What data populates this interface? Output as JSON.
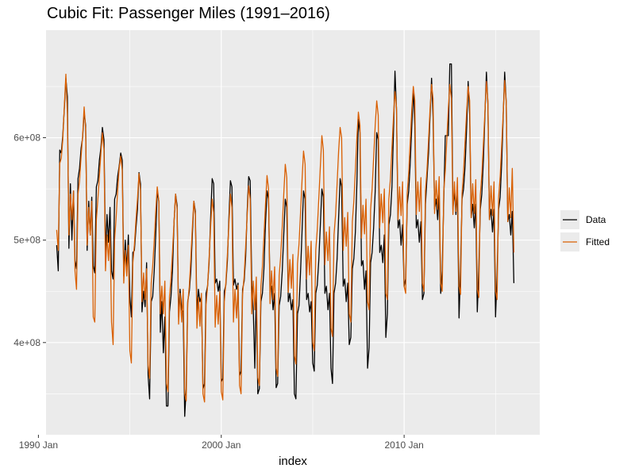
{
  "title": "Cubic Fit: Passenger Miles (1991–2016)",
  "chart_data": {
    "type": "line",
    "title": "Cubic Fit: Passenger Miles (1991–2016)",
    "xlabel": "index",
    "ylabel": "",
    "x_range": [
      "1990-06",
      "2017-06"
    ],
    "ylim": [
      310000000,
      705000000
    ],
    "x_ticks": [
      {
        "label": "1990 Jan",
        "value": "1990-01"
      },
      {
        "label": "2000 Jan",
        "value": "2000-01"
      },
      {
        "label": "2010 Jan",
        "value": "2010-01"
      }
    ],
    "y_ticks": [
      {
        "label": "4e+08",
        "value": 400000000
      },
      {
        "label": "5e+08",
        "value": 500000000
      },
      {
        "label": "6e+08",
        "value": 600000000
      }
    ],
    "grid": true,
    "legend_position": "right",
    "x_start": "1991-01",
    "x_interval": "month",
    "series": [
      {
        "name": "Data",
        "color": "#000000",
        "values": [
          495000000,
          470000000,
          588000000,
          585000000,
          602000000,
          628000000,
          658000000,
          640000000,
          492000000,
          555000000,
          500000000,
          548000000,
          480000000,
          472000000,
          560000000,
          570000000,
          590000000,
          600000000,
          625000000,
          612000000,
          490000000,
          538000000,
          505000000,
          542000000,
          475000000,
          468000000,
          552000000,
          558000000,
          578000000,
          590000000,
          610000000,
          598000000,
          488000000,
          525000000,
          498000000,
          532000000,
          470000000,
          462000000,
          540000000,
          545000000,
          562000000,
          572000000,
          585000000,
          578000000,
          465000000,
          500000000,
          472000000,
          505000000,
          445000000,
          425000000,
          488000000,
          490000000,
          512000000,
          530000000,
          566000000,
          555000000,
          430000000,
          450000000,
          435000000,
          478000000,
          368000000,
          345000000,
          440000000,
          445000000,
          470000000,
          505000000,
          548000000,
          538000000,
          410000000,
          440000000,
          390000000,
          425000000,
          338000000,
          338000000,
          430000000,
          445000000,
          470000000,
          518000000,
          545000000,
          534000000,
          425000000,
          452000000,
          432000000,
          430000000,
          328000000,
          355000000,
          440000000,
          450000000,
          470000000,
          505000000,
          538000000,
          528000000,
          428000000,
          452000000,
          440000000,
          445000000,
          355000000,
          360000000,
          448000000,
          455000000,
          478000000,
          520000000,
          560000000,
          555000000,
          458000000,
          462000000,
          450000000,
          460000000,
          362000000,
          365000000,
          450000000,
          456000000,
          480000000,
          522000000,
          558000000,
          552000000,
          456000000,
          462000000,
          452000000,
          458000000,
          368000000,
          372000000,
          452000000,
          460000000,
          484000000,
          528000000,
          562000000,
          558000000,
          456000000,
          432000000,
          375000000,
          448000000,
          350000000,
          355000000,
          440000000,
          448000000,
          472000000,
          515000000,
          548000000,
          540000000,
          450000000,
          455000000,
          432000000,
          448000000,
          356000000,
          360000000,
          436000000,
          445000000,
          470000000,
          506000000,
          540000000,
          532000000,
          440000000,
          448000000,
          432000000,
          442000000,
          350000000,
          345000000,
          428000000,
          436000000,
          468000000,
          508000000,
          548000000,
          540000000,
          442000000,
          448000000,
          430000000,
          440000000,
          380000000,
          372000000,
          448000000,
          456000000,
          480000000,
          515000000,
          550000000,
          542000000,
          448000000,
          455000000,
          432000000,
          448000000,
          375000000,
          360000000,
          448000000,
          458000000,
          482000000,
          522000000,
          560000000,
          552000000,
          455000000,
          462000000,
          440000000,
          458000000,
          398000000,
          405000000,
          472000000,
          482000000,
          508000000,
          555000000,
          618000000,
          605000000,
          475000000,
          480000000,
          452000000,
          470000000,
          375000000,
          395000000,
          478000000,
          488000000,
          512000000,
          548000000,
          605000000,
          598000000,
          488000000,
          495000000,
          478000000,
          505000000,
          405000000,
          428000000,
          515000000,
          525000000,
          552000000,
          605000000,
          665000000,
          628000000,
          512000000,
          520000000,
          495000000,
          515000000,
          455000000,
          462000000,
          535000000,
          548000000,
          575000000,
          610000000,
          648000000,
          612000000,
          512000000,
          520000000,
          498000000,
          518000000,
          442000000,
          448000000,
          535000000,
          560000000,
          585000000,
          622000000,
          658000000,
          620000000,
          530000000,
          540000000,
          520000000,
          545000000,
          448000000,
          470000000,
          540000000,
          602000000,
          602000000,
          602000000,
          672000000,
          672000000,
          530000000,
          548000000,
          525000000,
          548000000,
          424000000,
          470000000,
          540000000,
          550000000,
          572000000,
          610000000,
          655000000,
          622000000,
          522000000,
          535000000,
          512000000,
          535000000,
          430000000,
          470000000,
          530000000,
          545000000,
          578000000,
          622000000,
          664000000,
          632000000,
          520000000,
          530000000,
          508000000,
          530000000,
          425000000,
          465000000,
          530000000,
          542000000,
          575000000,
          620000000,
          664000000,
          634000000,
          518000000,
          525000000,
          505000000,
          528000000,
          458000000
        ]
      },
      {
        "name": "Fitted",
        "color": "#d95f02",
        "values": [
          510000000,
          490000000,
          575000000,
          580000000,
          598000000,
          630000000,
          662000000,
          622000000,
          505000000,
          545000000,
          520000000,
          548000000,
          470000000,
          452000000,
          545000000,
          558000000,
          582000000,
          602000000,
          630000000,
          608000000,
          495000000,
          532000000,
          505000000,
          538000000,
          425000000,
          420000000,
          520000000,
          540000000,
          562000000,
          585000000,
          605000000,
          588000000,
          470000000,
          505000000,
          480000000,
          510000000,
          420000000,
          398000000,
          500000000,
          522000000,
          548000000,
          570000000,
          582000000,
          568000000,
          458000000,
          490000000,
          465000000,
          495000000,
          392000000,
          380000000,
          478000000,
          495000000,
          520000000,
          540000000,
          565000000,
          548000000,
          440000000,
          468000000,
          442000000,
          472000000,
          378000000,
          365000000,
          458000000,
          475000000,
          500000000,
          528000000,
          552000000,
          538000000,
          428000000,
          455000000,
          428000000,
          460000000,
          360000000,
          352000000,
          445000000,
          462000000,
          488000000,
          518000000,
          545000000,
          530000000,
          418000000,
          448000000,
          420000000,
          452000000,
          350000000,
          343000000,
          438000000,
          455000000,
          482000000,
          512000000,
          538000000,
          525000000,
          414000000,
          444000000,
          416000000,
          448000000,
          350000000,
          342000000,
          437000000,
          455000000,
          482000000,
          512000000,
          540000000,
          527000000,
          415000000,
          446000000,
          418000000,
          450000000,
          352000000,
          344000000,
          440000000,
          458000000,
          486000000,
          516000000,
          545000000,
          532000000,
          420000000,
          452000000,
          424000000,
          456000000,
          358000000,
          350000000,
          447000000,
          465000000,
          494000000,
          524000000,
          553000000,
          540000000,
          428000000,
          460000000,
          432000000,
          464000000,
          366000000,
          358000000,
          455000000,
          474000000,
          503000000,
          534000000,
          563000000,
          550000000,
          438000000,
          470000000,
          442000000,
          474000000,
          375000000,
          367000000,
          465000000,
          484000000,
          513000000,
          545000000,
          574000000,
          561000000,
          449000000,
          481000000,
          453000000,
          486000000,
          387000000,
          379000000,
          477000000,
          496000000,
          526000000,
          558000000,
          587000000,
          574000000,
          462000000,
          494000000,
          466000000,
          499000000,
          400000000,
          392000000,
          490000000,
          510000000,
          540000000,
          572000000,
          602000000,
          588000000,
          476000000,
          508000000,
          480000000,
          513000000,
          414000000,
          406000000,
          505000000,
          525000000,
          555000000,
          587000000,
          610000000,
          600000000,
          490000000,
          522000000,
          494000000,
          527000000,
          428000000,
          420000000,
          518000000,
          538000000,
          568000000,
          600000000,
          625000000,
          612000000,
          502000000,
          534000000,
          506000000,
          540000000,
          440000000,
          432000000,
          530000000,
          550000000,
          580000000,
          612000000,
          636000000,
          622000000,
          512000000,
          545000000,
          517000000,
          550000000,
          448000000,
          442000000,
          540000000,
          560000000,
          590000000,
          620000000,
          645000000,
          630000000,
          520000000,
          552000000,
          524000000,
          557000000,
          455000000,
          448000000,
          546000000,
          566000000,
          596000000,
          626000000,
          650000000,
          636000000,
          525000000,
          557000000,
          528000000,
          561000000,
          458000000,
          450000000,
          548000000,
          568000000,
          598000000,
          628000000,
          652000000,
          638000000,
          526000000,
          558000000,
          530000000,
          562000000,
          458000000,
          450000000,
          548000000,
          568000000,
          598000000,
          628000000,
          652000000,
          638000000,
          525000000,
          557000000,
          528000000,
          561000000,
          455000000,
          447000000,
          546000000,
          566000000,
          596000000,
          626000000,
          650000000,
          636000000,
          522000000,
          555000000,
          526000000,
          559000000,
          452000000,
          444000000,
          544000000,
          564000000,
          594000000,
          625000000,
          655000000,
          636000000,
          520000000,
          553000000,
          524000000,
          557000000,
          450000000,
          442000000,
          542000000,
          562000000,
          592000000,
          623000000,
          656000000,
          634000000,
          518000000,
          551000000,
          522000000,
          570000000,
          488000000
        ]
      }
    ]
  }
}
